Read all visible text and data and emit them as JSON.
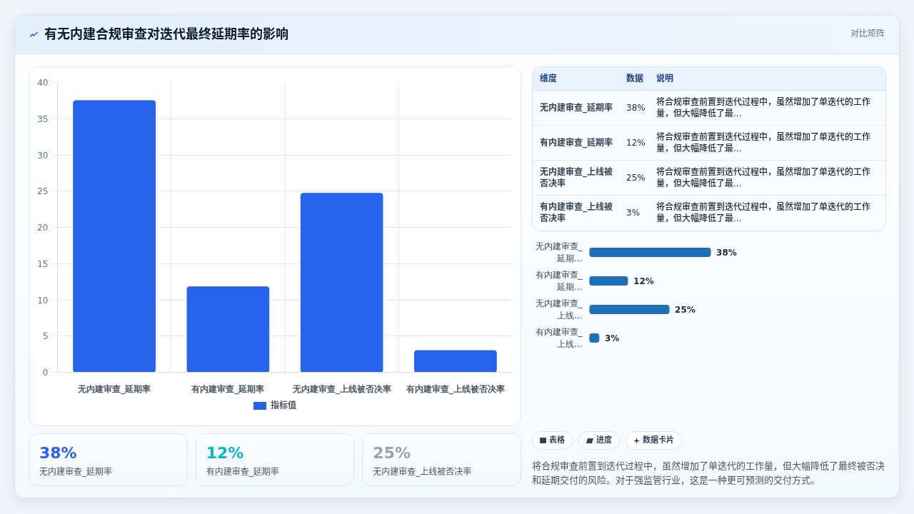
{
  "chart_data": [
    {
      "type": "bar",
      "title": "有无内建合规审查对迭代最终延期率的影响",
      "annotations": [
        "对比矩阵"
      ],
      "categories": [
        "无内建审查_延期率",
        "有内建审查_延期率",
        "无内建审查_上线被否决率",
        "有内建审查_上线被否决率"
      ],
      "series": [
        {
          "name": "指标值",
          "color": "#2563eb",
          "values": [
            37.5,
            11.8,
            24.7,
            3.0
          ]
        }
      ],
      "ylim": [
        0,
        40
      ],
      "yticks": [
        0,
        5,
        10,
        15,
        20,
        25,
        30,
        35,
        40
      ],
      "grid": true,
      "legend": "bottom"
    },
    {
      "type": "other",
      "categories": [
        "维度",
        "数据",
        "说明"
      ],
      "annotations": [
        "无内建审查_延期率",
        "38%",
        "将合规审查前置到迭代过程中，虽然增加了单迭代的工作量，但大幅降低了最...",
        "有内建审查_延期率",
        "12%",
        "将合规审查前置到迭代过程中，虽然增加了单迭代的工作量，但大幅降低了最...",
        "无内建审查_上线被否决率",
        "25%",
        "将合规审查前置到迭代过程中，虽然增加了单迭代的工作量，但大幅降低了最...",
        "有内建审查_上线被否决率",
        "3%",
        "将合规审查前置到迭代过程中，虽然增加了单迭代的工作量，但大幅降低了最..."
      ]
    },
    {
      "type": "bar",
      "orientation": "horizontal",
      "categories": [
        "无内建审查_延期...",
        "有内建审查_延期...",
        "无内建审查_上线...",
        "有内建审查_上线..."
      ],
      "values": [
        38,
        12,
        25,
        3
      ],
      "value_labels": [
        "38%",
        "12%",
        "25%",
        "3%"
      ],
      "color": "#1d6fb8",
      "tick_labels": "y"
    },
    {
      "type": "other",
      "categories": [
        "无内建审查_延期率",
        "有内建审查_延期率",
        "无内建审查_上线被否决率"
      ],
      "annotations": [
        "38%",
        "12%",
        "25%"
      ]
    },
    {
      "type": "other",
      "categories": [
        "表格",
        "进度",
        "数据卡片"
      ],
      "annotations": [
        "将合规审查前置到迭代过程中，虽然增加了单迭代的工作量，但大幅降低了最终被否决和延期交付的风险。对于强监管行业，这是一种更可预测的交付方式。"
      ]
    }
  ]
}
